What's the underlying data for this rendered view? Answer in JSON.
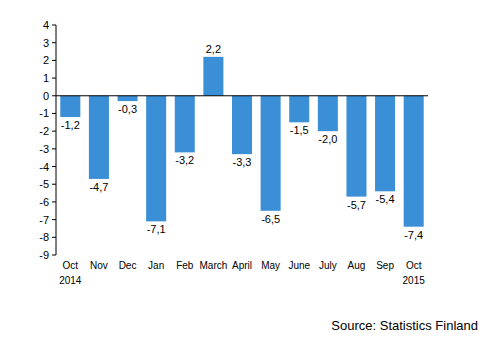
{
  "chart_data": {
    "type": "bar",
    "categories": [
      "Oct",
      "Nov",
      "Dec",
      "Jan",
      "Feb",
      "March",
      "April",
      "May",
      "June",
      "July",
      "Aug",
      "Sep",
      "Oct"
    ],
    "x_sublabels": [
      "2014",
      null,
      null,
      null,
      null,
      null,
      null,
      null,
      null,
      null,
      null,
      null,
      "2015"
    ],
    "values": [
      -1.2,
      -4.7,
      -0.3,
      -7.1,
      -3.2,
      2.2,
      -3.3,
      -6.5,
      -1.5,
      -2.0,
      -5.7,
      -5.4,
      -7.4
    ],
    "value_labels": [
      "-1,2",
      "-4,7",
      "-0,3",
      "-7,1",
      "-3,2",
      "2,2",
      "-3,3",
      "-6,5",
      "-1,5",
      "-2,0",
      "-5,7",
      "-5,4",
      "-7,4"
    ],
    "color": "#3a8fd6",
    "ylim": [
      -9,
      4
    ],
    "yticks": [
      -9,
      -8,
      -7,
      -6,
      -5,
      -4,
      -3,
      -2,
      -1,
      0,
      1,
      2,
      3,
      4
    ],
    "grid": false,
    "data_labels": true,
    "source": "Source: Statistics Finland"
  }
}
